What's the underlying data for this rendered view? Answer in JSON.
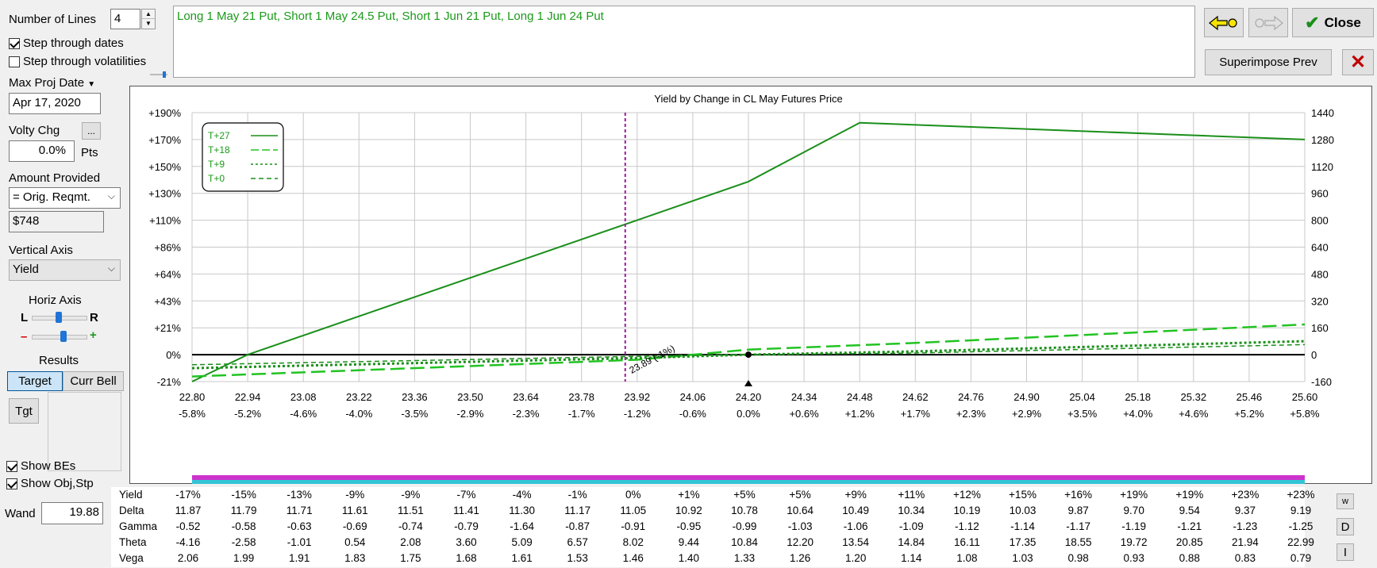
{
  "left_panel": {
    "num_lines_label": "Number of Lines",
    "num_lines_value": "4",
    "step_dates_label": "Step through dates",
    "step_dates_checked": true,
    "step_vols_label": "Step through volatilities",
    "step_vols_checked": false,
    "max_proj_date_label": "Max Proj Date",
    "max_proj_date_value": "Apr 17, 2020",
    "volty_chg_label": "Volty Chg",
    "volty_chg_button": "...",
    "volty_chg_value": "0.0%",
    "volty_chg_unit": "Pts",
    "amount_provided_label": "Amount Provided",
    "amount_provided_value": "= Orig. Reqmt.",
    "amount_value": "$748",
    "vertical_axis_label": "Vertical Axis",
    "vertical_axis_value": "Yield",
    "horiz_axis_label": "Horiz Axis",
    "horiz_l": "L",
    "horiz_r": "R",
    "zoom_minus": "–",
    "zoom_plus": "+",
    "results_label": "Results",
    "tab_target": "Target",
    "tab_curr_bell": "Curr Bell",
    "tgt_button": "Tgt",
    "show_bes_label": "Show BEs",
    "show_bes_checked": true,
    "show_obj_label": "Show Obj,Stp",
    "show_obj_checked": true,
    "wand_label": "Wand",
    "wand_value": "19.88"
  },
  "trade_description": "Long 1 May 21 Put, Short 1 May 24.5 Put, Short 1 Jun 21 Put, Long 1 Jun 24 Put",
  "toolbar": {
    "close_label": "Close",
    "superimpose_label": "Superimpose Prev",
    "accent_green": "#1a8f1a",
    "delete_red": "#c00000"
  },
  "side_buttons": {
    "w_label": "w",
    "d_label": "D",
    "i_label": "I"
  },
  "chart_data": {
    "type": "line",
    "title": "Yield by Change in CL May Futures Price",
    "x_ticks": [
      "22.80",
      "22.94",
      "23.08",
      "23.22",
      "23.36",
      "23.50",
      "23.64",
      "23.78",
      "23.92",
      "24.06",
      "24.20",
      "24.34",
      "24.48",
      "24.62",
      "24.76",
      "24.90",
      "25.04",
      "25.18",
      "25.32",
      "25.46",
      "25.60"
    ],
    "x_pct_ticks": [
      "-5.8%",
      "-5.2%",
      "-4.6%",
      "-4.0%",
      "-3.5%",
      "-2.9%",
      "-2.3%",
      "-1.7%",
      "-1.2%",
      "-0.6%",
      "0.0%",
      "+0.6%",
      "+1.2%",
      "+1.7%",
      "+2.3%",
      "+2.9%",
      "+3.5%",
      "+4.0%",
      "+4.6%",
      "+5.2%",
      "+5.8%"
    ],
    "y_left_ticks": [
      "+190%",
      "+170%",
      "+150%",
      "+130%",
      "+110%",
      "+86%",
      "+64%",
      "+43%",
      "+21%",
      "0%",
      "-21%"
    ],
    "y_right_ticks": [
      "1440",
      "1280",
      "1120",
      "960",
      "800",
      "640",
      "480",
      "320",
      "160",
      "0",
      "-160"
    ],
    "xlim": [
      22.8,
      25.6
    ],
    "ylim": [
      -160,
      1440
    ],
    "legend": [
      "T+27",
      "T+18",
      "T+9",
      "T+0"
    ],
    "legend_position": "top-left",
    "series": [
      {
        "name": "T+27",
        "style": "solid",
        "color": "#1a8f1a",
        "x": [
          22.8,
          22.94,
          23.92,
          24.2,
          24.48,
          25.6
        ],
        "y": [
          -160,
          0,
          800,
          1030,
          1380,
          1280
        ]
      },
      {
        "name": "T+18",
        "style": "longdash",
        "color": "#22c322",
        "x": [
          22.8,
          23.92,
          24.2,
          24.62,
          25.6
        ],
        "y": [
          -130,
          -30,
          30,
          70,
          180
        ]
      },
      {
        "name": "T+9",
        "style": "dotted",
        "color": "#1a8f1a",
        "x": [
          22.8,
          23.92,
          24.2,
          24.62,
          25.6
        ],
        "y": [
          -80,
          -20,
          0,
          20,
          80
        ]
      },
      {
        "name": "T+0",
        "style": "dashed",
        "color": "#1a8f1a",
        "x": [
          22.8,
          23.92,
          24.2,
          24.62,
          25.6
        ],
        "y": [
          -60,
          -10,
          0,
          10,
          60
        ]
      }
    ],
    "zero_line": 0,
    "vertical_marker": {
      "x": 23.89,
      "label": "23.89 (-1%)",
      "color": "#9b1c9b"
    },
    "current_price_marker": 24.2,
    "grid": true
  },
  "results_table": {
    "rows": [
      {
        "name": "Yield",
        "values": [
          "-17%",
          "-15%",
          "-13%",
          "-9%",
          "-9%",
          "-7%",
          "-4%",
          "-1%",
          "0%",
          "+1%",
          "+5%",
          "+5%",
          "+9%",
          "+11%",
          "+12%",
          "+15%",
          "+16%",
          "+19%",
          "+19%",
          "+23%",
          "+23%"
        ]
      },
      {
        "name": "Delta",
        "values": [
          "11.87",
          "11.79",
          "11.71",
          "11.61",
          "11.51",
          "11.41",
          "11.30",
          "11.17",
          "11.05",
          "10.92",
          "10.78",
          "10.64",
          "10.49",
          "10.34",
          "10.19",
          "10.03",
          "9.87",
          "9.70",
          "9.54",
          "9.37",
          "9.19"
        ]
      },
      {
        "name": "Gamma",
        "values": [
          "-0.52",
          "-0.58",
          "-0.63",
          "-0.69",
          "-0.74",
          "-0.79",
          "-1.64",
          "-0.87",
          "-0.91",
          "-0.95",
          "-0.99",
          "-1.03",
          "-1.06",
          "-1.09",
          "-1.12",
          "-1.14",
          "-1.17",
          "-1.19",
          "-1.21",
          "-1.23",
          "-1.25"
        ]
      },
      {
        "name": "Theta",
        "values": [
          "-4.16",
          "-2.58",
          "-1.01",
          "0.54",
          "2.08",
          "3.60",
          "5.09",
          "6.57",
          "8.02",
          "9.44",
          "10.84",
          "12.20",
          "13.54",
          "14.84",
          "16.11",
          "17.35",
          "18.55",
          "19.72",
          "20.85",
          "21.94",
          "22.99"
        ]
      },
      {
        "name": "Vega",
        "values": [
          "2.06",
          "1.99",
          "1.91",
          "1.83",
          "1.75",
          "1.68",
          "1.61",
          "1.53",
          "1.46",
          "1.40",
          "1.33",
          "1.26",
          "1.20",
          "1.14",
          "1.08",
          "1.03",
          "0.98",
          "0.93",
          "0.88",
          "0.83",
          "0.79"
        ]
      }
    ]
  }
}
